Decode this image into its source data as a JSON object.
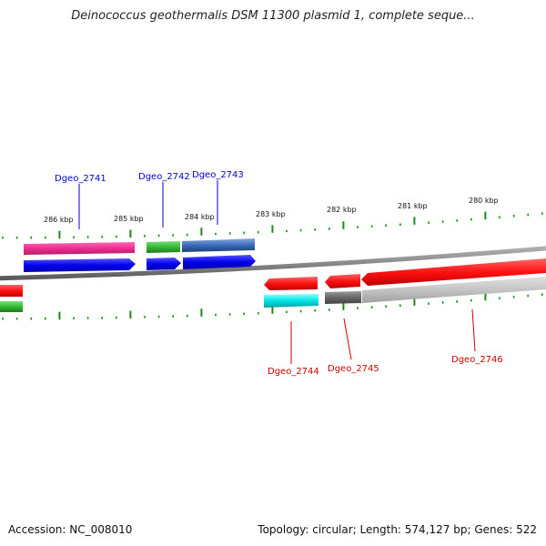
{
  "title": "Deinococcus geothermalis DSM 11300 plasmid 1, complete seque...",
  "footer": {
    "accession": "Accession: NC_008010",
    "summary": "Topology: circular; Length: 574,127 bp; Genes: 522"
  },
  "colors": {
    "tick": "#1a8a1a",
    "forward_label": "#0000cc",
    "reverse_label": "#cc0000",
    "backbone": "#8c8c8c"
  },
  "scale": {
    "ticks": [
      {
        "label": "286 kbp",
        "kbp": 286
      },
      {
        "label": "285 kbp",
        "kbp": 285
      },
      {
        "label": "284 kbp",
        "kbp": 284
      },
      {
        "label": "283 kbp",
        "kbp": 283
      },
      {
        "label": "282 kbp",
        "kbp": 282
      },
      {
        "label": "281 kbp",
        "kbp": 281
      },
      {
        "label": "280 kbp",
        "kbp": 280
      }
    ]
  },
  "genes": {
    "forward": [
      {
        "name": "Dgeo_2741",
        "color": "#ee3399"
      },
      {
        "name": "Dgeo_2742",
        "color": "#33bb33"
      },
      {
        "name": "Dgeo_2743",
        "color": "#3366bb"
      }
    ],
    "reverse": [
      {
        "name": "Dgeo_2744",
        "color": "#ff2222"
      },
      {
        "name": "Dgeo_2745",
        "color": "#ff2222"
      },
      {
        "name": "Dgeo_2746",
        "color": "#ff2222"
      }
    ]
  }
}
